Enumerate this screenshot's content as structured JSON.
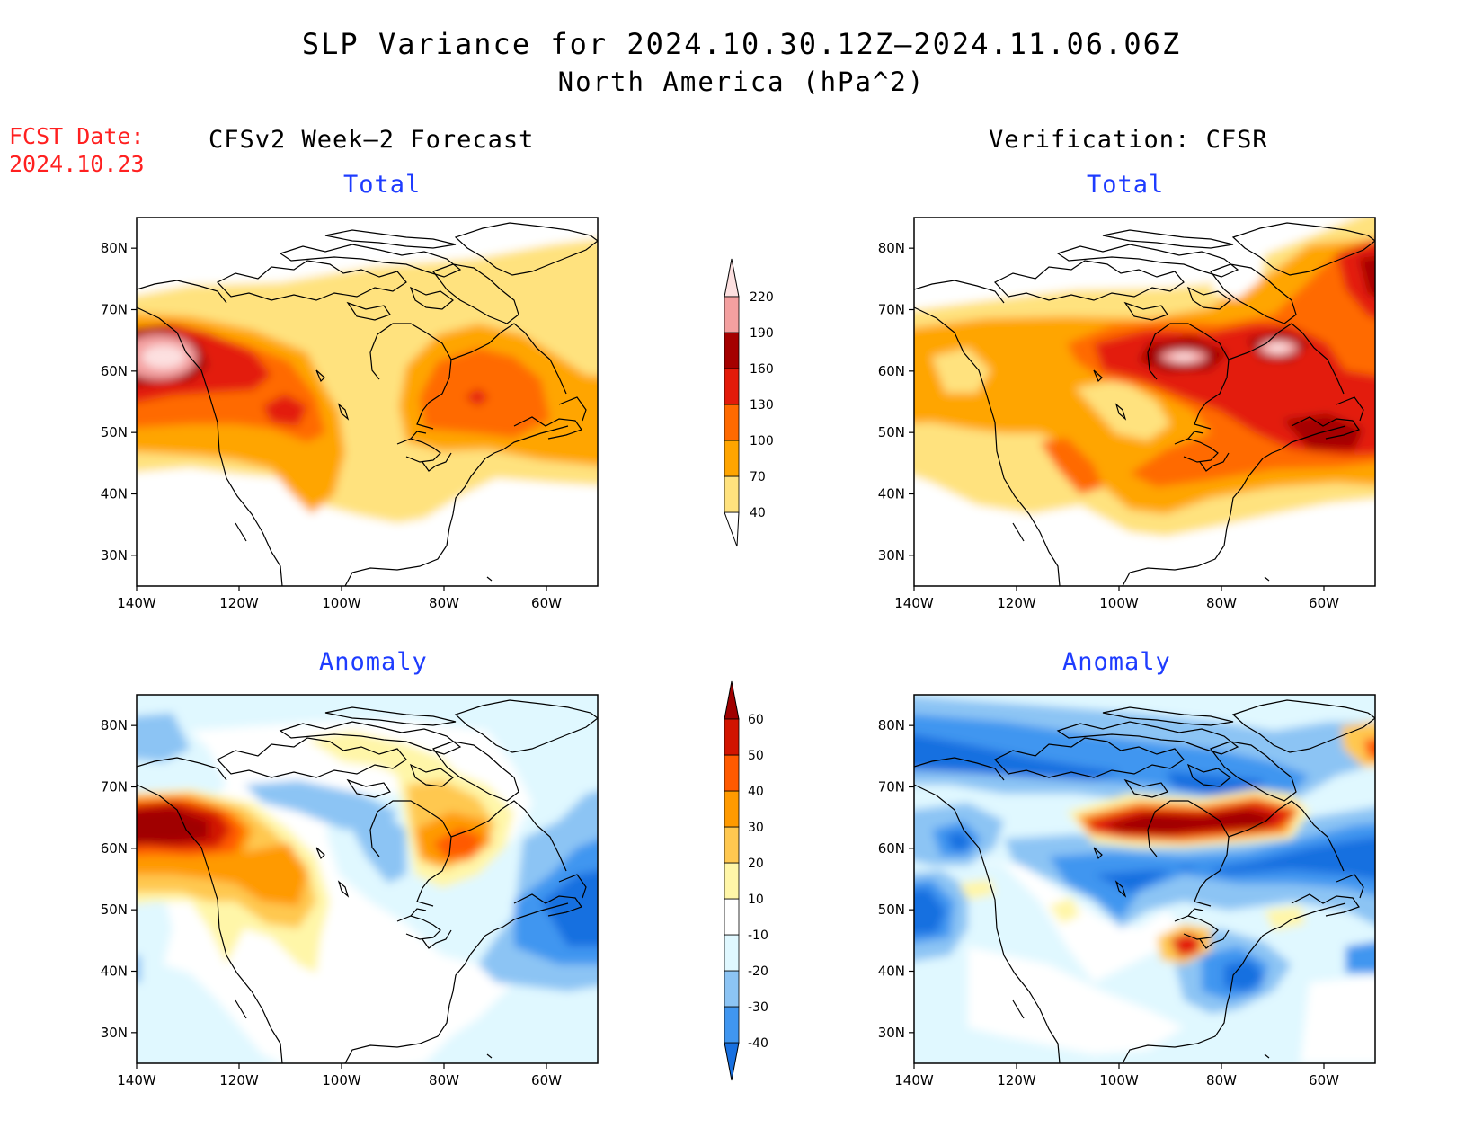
{
  "title": "SLP Variance for 2024.10.30.12Z–2024.11.06.06Z",
  "subtitle": "North America (hPa^2)",
  "fcst_date": {
    "label": "FCST Date:",
    "value": "2024.10.23"
  },
  "columns": {
    "left": "CFSv2 Week–2 Forecast",
    "right": "Verification: CFSR"
  },
  "panel_titles": {
    "total": "Total",
    "anomaly": "Anomaly"
  },
  "axes": {
    "lon_labels": [
      "140W",
      "120W",
      "100W",
      "80W",
      "60W"
    ],
    "lat_labels": [
      "80N",
      "70N",
      "60N",
      "50N",
      "40N",
      "30N"
    ],
    "lon_range": [
      -140,
      -50
    ],
    "lat_range": [
      25,
      85
    ]
  },
  "colorbars": {
    "total": {
      "levels": [
        "40",
        "70",
        "100",
        "130",
        "160",
        "190",
        "220"
      ],
      "colors": [
        "#ffe27e",
        "#ffa500",
        "#ff6a00",
        "#e31a0a",
        "#a50000",
        "#f4a0a0",
        "#fde0e0"
      ]
    },
    "anomaly": {
      "levels": [
        "-40",
        "-30",
        "-20",
        "-10",
        "10",
        "20",
        "30",
        "40",
        "50",
        "60"
      ],
      "colors": [
        "#1870e0",
        "#4096f0",
        "#8cc4f4",
        "#e0f8ff",
        "#ffffff",
        "#fff6a8",
        "#ffc850",
        "#ff9a00",
        "#ff5a00",
        "#d21400",
        "#a00000"
      ]
    }
  },
  "colors": {
    "title_blue": "#1e3cff",
    "fcst_red": "#ff2020"
  }
}
